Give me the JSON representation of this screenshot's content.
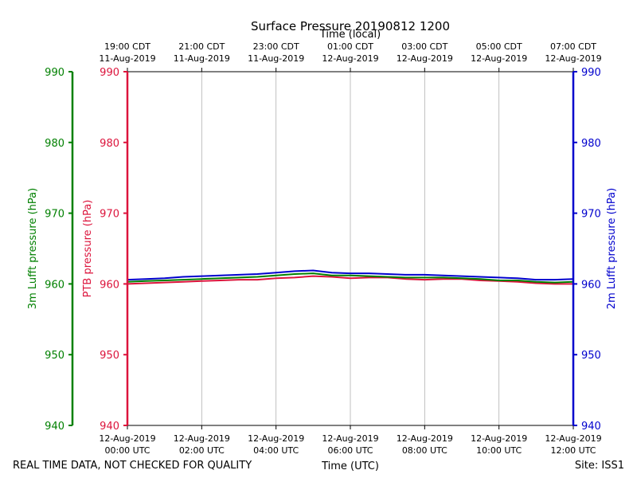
{
  "chart_data": {
    "type": "line",
    "title": "Surface Pressure 20190812 1200",
    "xlabel": "Time (UTC)",
    "x2label": "Time (local)",
    "xlim": [
      "2019-08-12T00:00Z",
      "2019-08-12T12:00Z"
    ],
    "x_ticks_utc": [
      {
        "t": 0,
        "date": "12-Aug-2019",
        "time": "00:00 UTC"
      },
      {
        "t": 2,
        "date": "12-Aug-2019",
        "time": "02:00 UTC"
      },
      {
        "t": 4,
        "date": "12-Aug-2019",
        "time": "04:00 UTC"
      },
      {
        "t": 6,
        "date": "12-Aug-2019",
        "time": "06:00 UTC"
      },
      {
        "t": 8,
        "date": "12-Aug-2019",
        "time": "08:00 UTC"
      },
      {
        "t": 10,
        "date": "12-Aug-2019",
        "time": "10:00 UTC"
      },
      {
        "t": 12,
        "date": "12-Aug-2019",
        "time": "12:00 UTC"
      }
    ],
    "x_ticks_local": [
      {
        "t": 0,
        "time": "19:00 CDT",
        "date": "11-Aug-2019"
      },
      {
        "t": 2,
        "time": "21:00 CDT",
        "date": "11-Aug-2019"
      },
      {
        "t": 4,
        "time": "23:00 CDT",
        "date": "11-Aug-2019"
      },
      {
        "t": 6,
        "time": "01:00 CDT",
        "date": "12-Aug-2019"
      },
      {
        "t": 8,
        "time": "03:00 CDT",
        "date": "12-Aug-2019"
      },
      {
        "t": 10,
        "time": "05:00 CDT",
        "date": "12-Aug-2019"
      },
      {
        "t": 12,
        "time": "07:00 CDT",
        "date": "12-Aug-2019"
      }
    ],
    "ylim": [
      940,
      990
    ],
    "y_ticks": [
      940,
      950,
      960,
      970,
      980,
      990
    ],
    "grid": "vertical",
    "axes": [
      {
        "side": "outer-left",
        "label": "3m Lufft pressure (hPa)",
        "color": "#008000"
      },
      {
        "side": "left",
        "label": "PTB pressure (hPa)",
        "color": "#dc143c"
      },
      {
        "side": "right",
        "label": "2m Lufft pressure (hPa)",
        "color": "#0000cd"
      }
    ],
    "x_hours": [
      0,
      0.5,
      1,
      1.5,
      2,
      2.5,
      3,
      3.5,
      4,
      4.5,
      5,
      5.5,
      6,
      6.5,
      7,
      7.5,
      8,
      8.5,
      9,
      9.5,
      10,
      10.5,
      11,
      11.5,
      12
    ],
    "series": [
      {
        "key": "ptb",
        "color": "#dc143c",
        "values": [
          960.0,
          960.1,
          960.2,
          960.3,
          960.4,
          960.5,
          960.6,
          960.6,
          960.8,
          960.9,
          961.1,
          961.0,
          960.8,
          960.9,
          960.9,
          960.7,
          960.6,
          960.7,
          960.7,
          960.5,
          960.4,
          960.3,
          960.1,
          960.0,
          960.0
        ]
      },
      {
        "key": "lufft3m",
        "color": "#008000",
        "values": [
          960.3,
          960.4,
          960.5,
          960.6,
          960.7,
          960.8,
          960.9,
          961.0,
          961.2,
          961.4,
          961.5,
          961.2,
          961.2,
          961.1,
          961.0,
          960.9,
          960.9,
          960.9,
          960.8,
          960.7,
          960.5,
          960.5,
          960.3,
          960.2,
          960.3
        ]
      },
      {
        "key": "lufft2m",
        "color": "#0000cd",
        "values": [
          960.6,
          960.7,
          960.8,
          961.0,
          961.1,
          961.2,
          961.3,
          961.4,
          961.6,
          961.8,
          961.9,
          961.6,
          961.5,
          961.5,
          961.4,
          961.3,
          961.3,
          961.2,
          961.1,
          961.0,
          960.9,
          960.8,
          960.6,
          960.6,
          960.7
        ]
      }
    ]
  },
  "footer": {
    "note": "REAL TIME DATA, NOT CHECKED FOR QUALITY",
    "site": "Site: ISS1"
  }
}
